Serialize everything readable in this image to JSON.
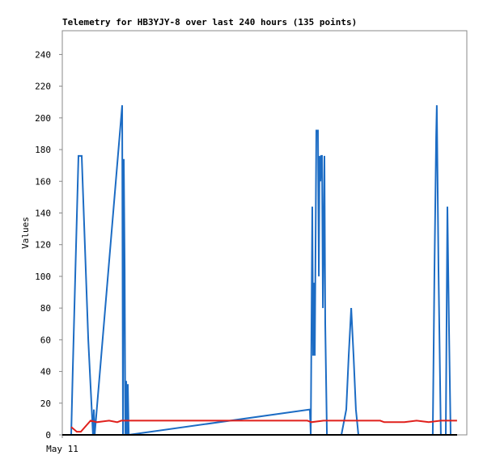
{
  "chart_data": {
    "type": "line",
    "title": "Telemetry for HB3YJY-8 over last 240 hours (135 points)",
    "y_label": "Values",
    "xlim": [
      0,
      240
    ],
    "xticks": [
      {
        "value": 0,
        "label": "May 11"
      }
    ],
    "ylim": [
      0,
      255
    ],
    "yticks": [
      0,
      20,
      40,
      60,
      80,
      100,
      120,
      140,
      160,
      180,
      200,
      220,
      240
    ],
    "series": [
      {
        "color": "#1c6cc4",
        "x": [
          5.3,
          6.2,
          7.7,
          9.6,
          11.5,
          13.4,
          15.4,
          17.3,
          18.2,
          18.7,
          19.2,
          35.5,
          36.0,
          36.5,
          37.0,
          37.4,
          37.9,
          38.4,
          38.9,
          39.4,
          146.9,
          147.4,
          148.3,
          148.8,
          149.3,
          149.8,
          150.7,
          151.7,
          152.2,
          152.6,
          153.1,
          153.6,
          154.1,
          154.6,
          155.5,
          156.0,
          157.0,
          165.6,
          168.5,
          169.9,
          171.4,
          172.8,
          174.2,
          175.7,
          219.8,
          220.8,
          221.8,
          222.2,
          223.2,
          224.6,
          227.5,
          228.5,
          229.4,
          230.4
        ],
        "values": [
          0,
          40,
          100,
          176,
          176,
          120,
          60,
          20,
          0,
          16,
          0,
          208,
          0,
          174,
          104,
          0,
          34,
          0,
          32,
          0,
          16,
          0,
          144,
          50,
          96,
          50,
          192,
          192,
          100,
          176,
          160,
          176,
          176,
          80,
          176,
          70,
          0,
          0,
          16,
          50,
          80,
          50,
          16,
          0,
          0,
          104,
          188,
          208,
          104,
          0,
          0,
          144,
          70,
          0
        ]
      },
      {
        "color": "#e0201c",
        "x": [
          5.3,
          8.6,
          11.0,
          16.8,
          20.6,
          27.8,
          32.6,
          35.0,
          145.4,
          147.8,
          155.0,
          188.6,
          191.0,
          203.0,
          210.2,
          217.4,
          224.6,
          234.2
        ],
        "values": [
          5,
          2,
          2,
          9,
          8,
          9,
          8,
          9,
          9,
          8,
          9,
          9,
          8,
          8,
          9,
          8,
          9,
          9
        ]
      }
    ]
  }
}
